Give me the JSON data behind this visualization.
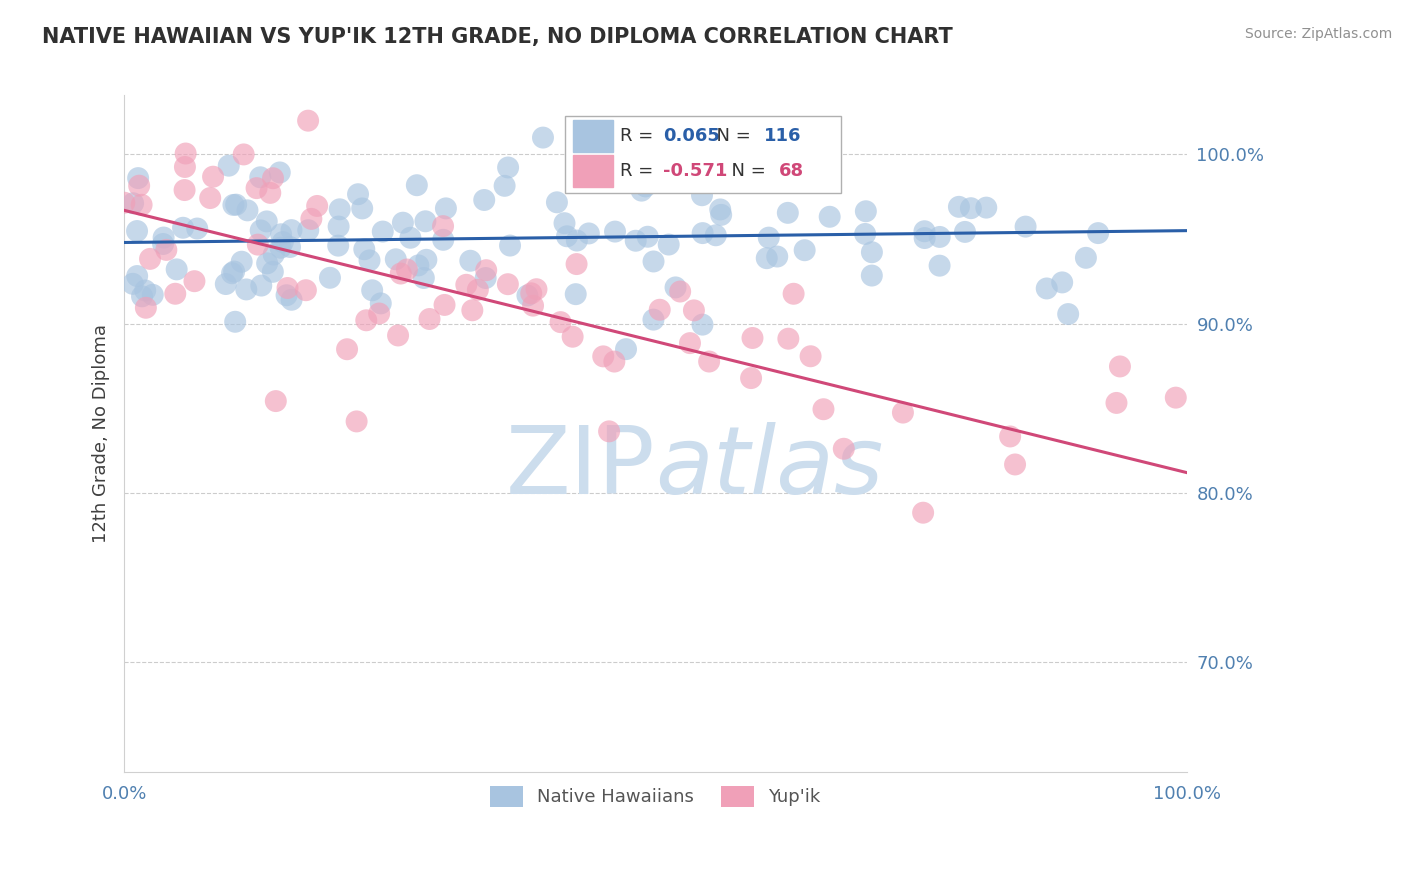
{
  "title": "NATIVE HAWAIIAN VS YUP'IK 12TH GRADE, NO DIPLOMA CORRELATION CHART",
  "source": "Source: ZipAtlas.com",
  "ylabel": "12th Grade, No Diploma",
  "ytick_labels": [
    "70.0%",
    "80.0%",
    "90.0%",
    "100.0%"
  ],
  "ytick_values": [
    0.7,
    0.8,
    0.9,
    1.0
  ],
  "legend_entries": [
    "Native Hawaiians",
    "Yup'ik"
  ],
  "blue_R": 0.065,
  "blue_N": 116,
  "pink_R": -0.571,
  "pink_N": 68,
  "blue_color": "#a8c4e0",
  "blue_line_color": "#2a5fa8",
  "pink_color": "#f0a0b8",
  "pink_line_color": "#d04878",
  "background_color": "#ffffff",
  "watermark_color": "#ccdded",
  "grid_color": "#cccccc",
  "title_color": "#303030",
  "axis_label_color": "#5080b0"
}
